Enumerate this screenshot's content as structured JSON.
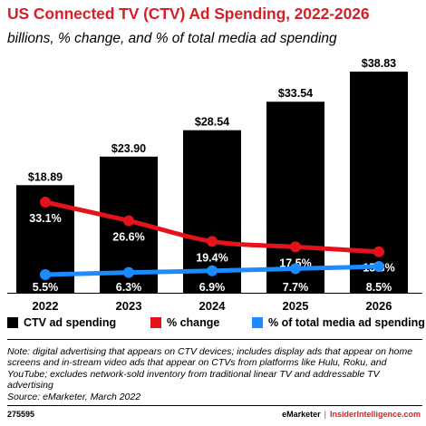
{
  "title": "US Connected TV (CTV) Ad Spending, 2022-2026",
  "subtitle": "billions, % change, and % of total media ad spending",
  "legend": {
    "ctv": "CTV ad spending",
    "change": "% change",
    "share": "% of total media ad spending"
  },
  "colors": {
    "bar": "#000000",
    "change": "#e3121b",
    "share": "#1a8cff",
    "title": "#d71f26"
  },
  "note": "Note: digital advertising that appears on CTV devices; includes display ads that appear on home screens and in-stream video ads that appear on CTVs from platforms like Hulu, Roku, and YouTube; excludes network-sold inventory from traditional linear TV and addressable TV advertising",
  "source": "Source: eMarketer, March 2022",
  "footer": {
    "id": "275595",
    "brand1": "eMarketer",
    "separator": "|",
    "brand2": "InsiderIntelligence.com"
  },
  "chart_data": {
    "type": "bar",
    "categories": [
      "2022",
      "2023",
      "2024",
      "2025",
      "2026"
    ],
    "series": [
      {
        "name": "CTV ad spending",
        "type": "bar",
        "values": [
          18.89,
          23.9,
          28.54,
          33.54,
          38.83
        ],
        "labels": [
          "$18.89",
          "$23.90",
          "$28.54",
          "$33.54",
          "$38.83"
        ]
      },
      {
        "name": "% change",
        "type": "line",
        "values": [
          33.1,
          26.6,
          19.4,
          17.5,
          15.8
        ],
        "labels": [
          "33.1%",
          "26.6%",
          "19.4%",
          "17.5%",
          "15.8%"
        ]
      },
      {
        "name": "% of total media ad spending",
        "type": "line",
        "values": [
          5.5,
          6.3,
          6.9,
          7.7,
          8.5
        ],
        "labels": [
          "5.5%",
          "6.3%",
          "6.9%",
          "7.7%",
          "8.5%"
        ]
      }
    ],
    "legend_position": "bottom",
    "grid": false
  }
}
